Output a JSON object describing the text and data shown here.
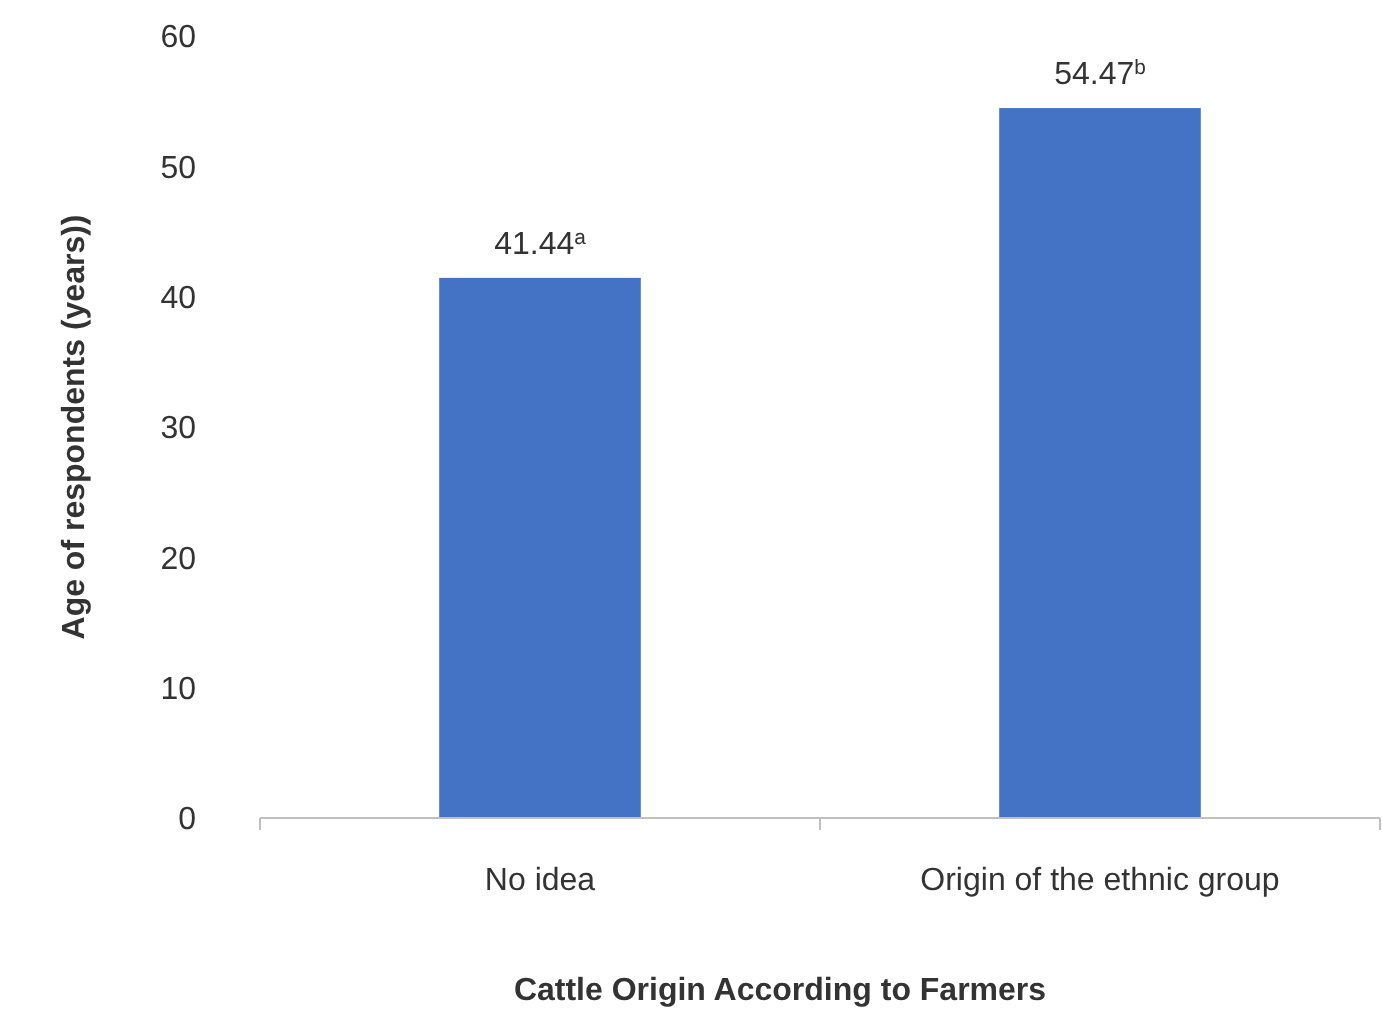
{
  "chart_data": {
    "type": "bar",
    "xlabel": "Cattle Origin According to Farmers",
    "ylabel": "Age of respondents (years))",
    "categories": [
      "No idea",
      "Origin of the ethnic group"
    ],
    "values": [
      41.44,
      54.47
    ],
    "color": "#4472c4",
    "value_labels": [
      "41.44$^{a}$",
      "54.47$^{b}$"
    ],
    "ylim": [
      0,
      60
    ],
    "yticks": [
      0,
      10,
      20,
      30,
      40,
      50,
      60
    ]
  }
}
